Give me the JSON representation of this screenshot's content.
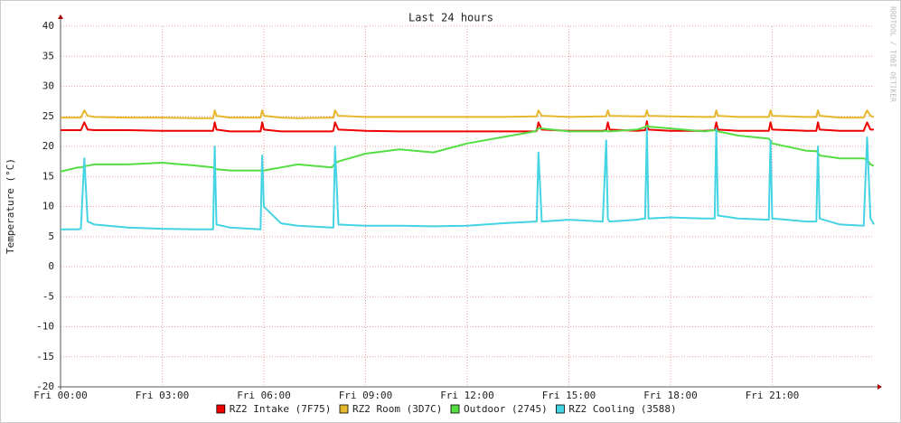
{
  "chart_data": {
    "type": "line",
    "title": "Last 24 hours",
    "y_label": "Temperature (°C)",
    "watermark": "RRDTOOL / TOBI OETIKER",
    "x": [
      0,
      0.5,
      0.6,
      0.7,
      0.8,
      1,
      2,
      3,
      4,
      4.5,
      4.55,
      4.6,
      5,
      5.9,
      5.95,
      6.0,
      6.5,
      7,
      8,
      8.05,
      8.1,
      8.2,
      9,
      10,
      11,
      12,
      13,
      14,
      14.05,
      14.1,
      14.2,
      15,
      16,
      16.1,
      16.15,
      16.2,
      17,
      17.25,
      17.3,
      17.35,
      18,
      19,
      19.3,
      19.35,
      19.4,
      20,
      20.9,
      20.95,
      21,
      22,
      22.3,
      22.35,
      22.4,
      23,
      23.7,
      23.8,
      23.9,
      24
    ],
    "series": [
      {
        "name": "RZ2 Intake (7F75)",
        "color": "#ee0000",
        "values": [
          22.7,
          22.7,
          22.7,
          24,
          22.8,
          22.7,
          22.7,
          22.6,
          22.6,
          22.6,
          24,
          22.8,
          22.5,
          22.5,
          24,
          22.8,
          22.5,
          22.5,
          22.5,
          22.6,
          24,
          22.8,
          22.6,
          22.5,
          22.5,
          22.5,
          22.5,
          22.5,
          22.6,
          24,
          22.8,
          22.6,
          22.6,
          22.7,
          24,
          22.8,
          22.6,
          22.7,
          24.2,
          22.8,
          22.6,
          22.6,
          22.7,
          24,
          22.8,
          22.6,
          22.6,
          24,
          22.8,
          22.6,
          22.6,
          24,
          22.8,
          22.6,
          22.6,
          24,
          22.8,
          22.8
        ]
      },
      {
        "name": "RZ2 Room (3D7C)",
        "color": "#e6b82e",
        "values": [
          24.8,
          24.8,
          24.8,
          26,
          25.1,
          24.9,
          24.8,
          24.8,
          24.7,
          24.7,
          26,
          25.1,
          24.8,
          24.8,
          26,
          25.1,
          24.8,
          24.7,
          24.8,
          24.8,
          26,
          25.1,
          24.9,
          24.9,
          24.9,
          24.9,
          24.9,
          25,
          25,
          26,
          25.1,
          24.9,
          25,
          25,
          26,
          25.1,
          25,
          25,
          26,
          25.1,
          25,
          24.9,
          24.9,
          26,
          25.1,
          24.9,
          24.9,
          26,
          25.1,
          24.9,
          24.9,
          26,
          25.1,
          24.8,
          24.8,
          26,
          25.1,
          24.9
        ]
      },
      {
        "name": "Outdoor (2745)",
        "color": "#55dd44",
        "values": [
          15.8,
          16.5,
          16.5,
          16.7,
          16.8,
          17,
          17,
          17.3,
          16.8,
          16.5,
          16.3,
          16.2,
          16,
          16,
          15.8,
          16,
          16.5,
          17,
          16.5,
          16.8,
          17.2,
          17.5,
          18.8,
          19.5,
          19,
          20.5,
          21.5,
          22.5,
          22.8,
          23,
          23,
          22.5,
          22.5,
          22.6,
          22.5,
          22.5,
          22.8,
          23.2,
          23.5,
          23.3,
          23,
          22.5,
          22.7,
          22.6,
          22.5,
          21.8,
          21.3,
          21,
          20.5,
          19.3,
          19.2,
          19,
          18.5,
          18,
          18,
          17.8,
          17,
          16.8
        ]
      },
      {
        "name": "RZ2 Cooling (3588)",
        "color": "#44d4e4",
        "values": [
          6.2,
          6.2,
          6.3,
          18,
          7.5,
          7,
          6.5,
          6.3,
          6.2,
          6.2,
          20,
          7,
          6.5,
          6.2,
          18.5,
          10,
          7.2,
          6.8,
          6.5,
          6.5,
          20,
          7,
          6.8,
          6.8,
          6.7,
          6.8,
          7.2,
          7.5,
          7.5,
          19,
          7.5,
          7.8,
          7.5,
          21,
          8,
          7.5,
          7.8,
          8,
          23,
          8,
          8.2,
          8,
          8,
          23,
          8.5,
          8,
          7.8,
          21,
          8,
          7.5,
          7.5,
          20,
          8,
          7,
          6.8,
          21.5,
          8,
          7
        ]
      }
    ],
    "xlim": [
      0,
      24
    ],
    "xticks": [
      {
        "value": 0,
        "label": "Fri 00:00"
      },
      {
        "value": 3,
        "label": "Fri 03:00"
      },
      {
        "value": 6,
        "label": "Fri 06:00"
      },
      {
        "value": 9,
        "label": "Fri 09:00"
      },
      {
        "value": 12,
        "label": "Fri 12:00"
      },
      {
        "value": 15,
        "label": "Fri 15:00"
      },
      {
        "value": 18,
        "label": "Fri 18:00"
      },
      {
        "value": 21,
        "label": "Fri 21:00"
      }
    ],
    "ylim": [
      -20,
      40
    ],
    "yticks": [
      -20,
      -15,
      -10,
      -5,
      0,
      5,
      10,
      15,
      20,
      25,
      30,
      35,
      40
    ],
    "grid": true
  }
}
